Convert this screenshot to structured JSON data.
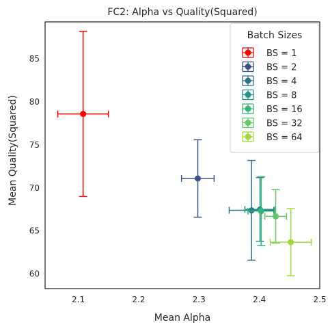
{
  "chart_data": {
    "type": "scatter",
    "title": "FC2: Alpha vs Quality(Squared)",
    "xlabel": "Mean Alpha",
    "ylabel": "Mean Quality(Squared)",
    "xlim": [
      2.045,
      2.5
    ],
    "ylim": [
      58.3,
      89.3
    ],
    "xticks": [
      2.1,
      2.2,
      2.3,
      2.4,
      2.5
    ],
    "yticks": [
      60,
      65,
      70,
      75,
      80,
      85
    ],
    "grid": false,
    "legend": {
      "title": "Batch Sizes",
      "placement": "upper-right"
    },
    "series": [
      {
        "name": "BS = 1",
        "color": "#ff0000",
        "x": 2.108,
        "y": 78.6,
        "xerr": 0.042,
        "yerr": 9.6
      },
      {
        "name": "BS = 2",
        "color": "#3b528b",
        "x": 2.298,
        "y": 71.1,
        "xerr": 0.027,
        "yerr": 4.5
      },
      {
        "name": "BS = 4",
        "color": "#2c728e",
        "x": 2.387,
        "y": 67.4,
        "xerr": 0.037,
        "yerr": 5.8
      },
      {
        "name": "BS = 8",
        "color": "#21918c",
        "x": 2.401,
        "y": 67.5,
        "xerr": 0.025,
        "yerr": 3.7
      },
      {
        "name": "BS = 16",
        "color": "#35b779",
        "x": 2.403,
        "y": 67.3,
        "xerr": 0.022,
        "yerr": 4.0
      },
      {
        "name": "BS = 32",
        "color": "#5ec962",
        "x": 2.427,
        "y": 66.7,
        "xerr": 0.018,
        "yerr": 3.1
      },
      {
        "name": "BS = 64",
        "color": "#a0da39",
        "x": 2.452,
        "y": 63.7,
        "xerr": 0.034,
        "yerr": 3.9
      }
    ]
  }
}
